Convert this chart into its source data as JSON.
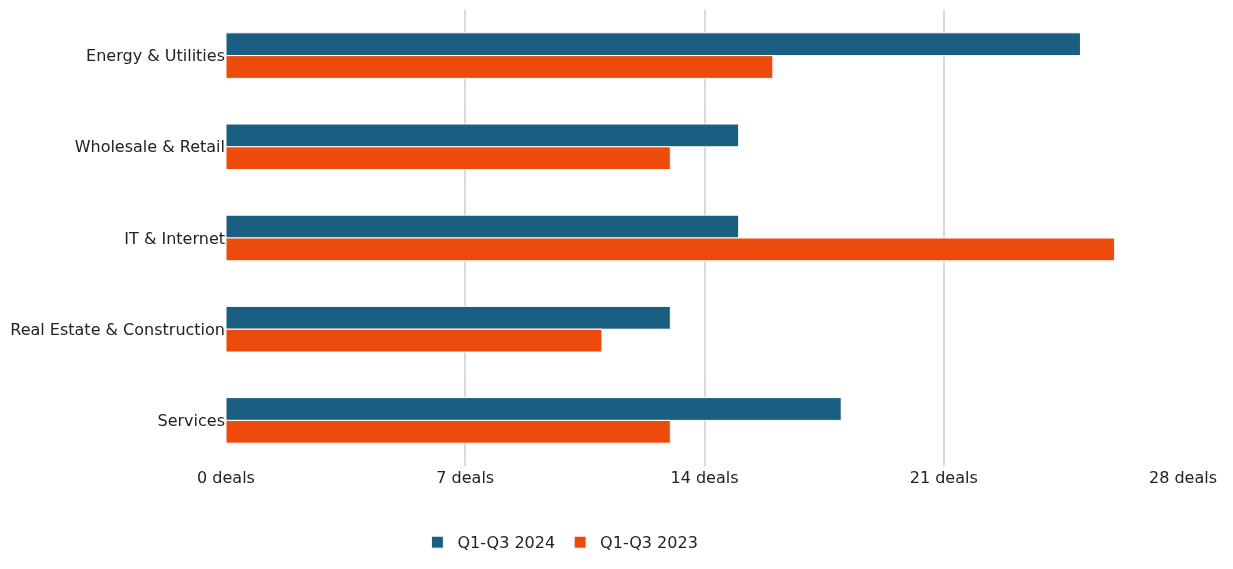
{
  "chart_data": {
    "type": "bar",
    "orientation": "horizontal",
    "categories": [
      "Energy & Utilities",
      "Wholesale & Retail",
      "IT & Internet",
      "Real Estate & Construction",
      "Services"
    ],
    "series": [
      {
        "name": "Q1-Q3 2024",
        "color": "#1a5f82",
        "values": [
          25,
          15,
          15,
          13,
          18
        ]
      },
      {
        "name": "Q1-Q3 2023",
        "color": "#ec4b0c",
        "values": [
          16,
          13,
          26,
          11,
          13
        ]
      }
    ],
    "xlim": [
      0,
      28
    ],
    "xticks": [
      {
        "value": 0,
        "label": "0 deals"
      },
      {
        "value": 7,
        "label": "7 deals"
      },
      {
        "value": 14,
        "label": "14 deals"
      },
      {
        "value": 21,
        "label": "21 deals"
      },
      {
        "value": 28,
        "label": "28 deals"
      }
    ],
    "grid": "x",
    "legend": "bottom"
  }
}
